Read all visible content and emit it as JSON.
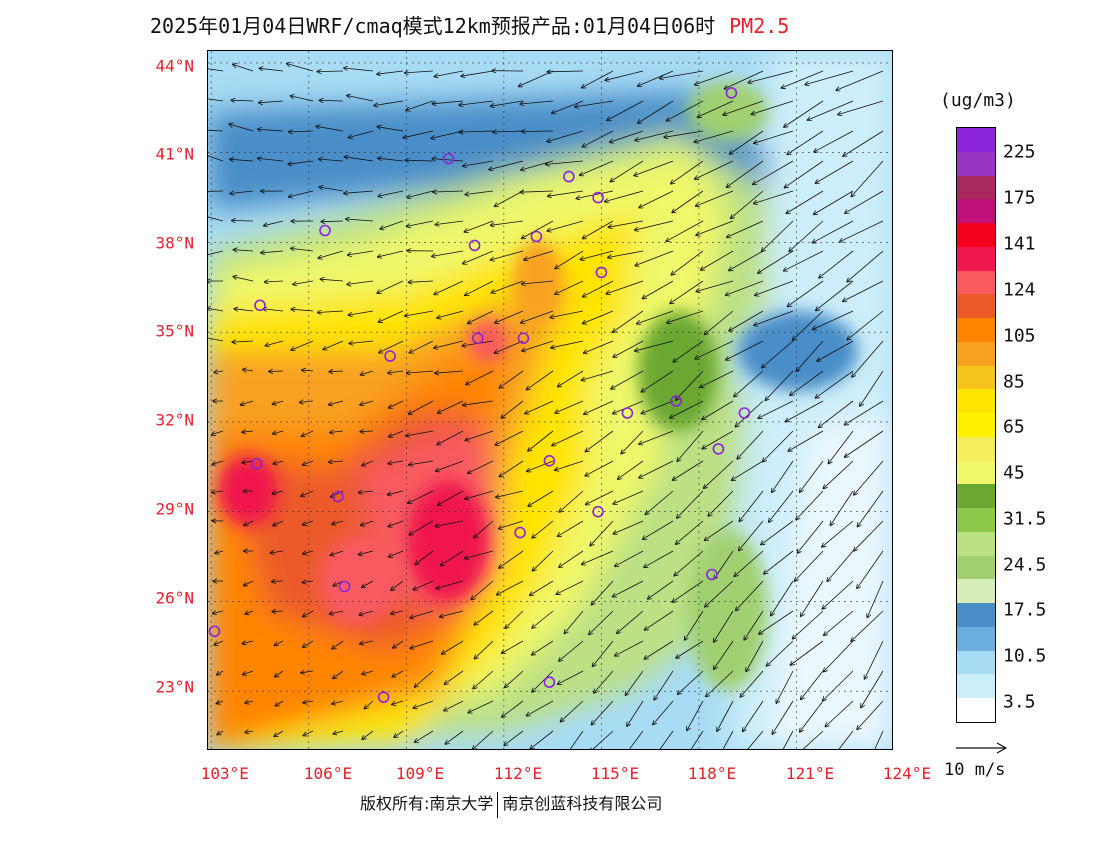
{
  "title": {
    "main": "2025年01月04日WRF/cmaq模式12km预报产品:01月04日06时",
    "species": "PM2.5"
  },
  "map": {
    "lat_labels": [
      "44°N",
      "41°N",
      "38°N",
      "35°N",
      "32°N",
      "29°N",
      "26°N",
      "23°N"
    ],
    "lat_values": [
      44,
      41,
      38,
      35,
      32,
      29,
      26,
      23
    ],
    "lon_labels": [
      "103°E",
      "106°E",
      "109°E",
      "112°E",
      "115°E",
      "118°E",
      "121°E",
      "124°E"
    ],
    "lon_values": [
      103,
      106,
      109,
      112,
      115,
      118,
      121,
      124
    ],
    "lon_range": [
      102.9,
      124
    ],
    "lat_range": [
      21,
      44.4
    ],
    "stations": [
      {
        "lon": 119,
        "lat": 43.0
      },
      {
        "lon": 110.3,
        "lat": 40.8
      },
      {
        "lon": 114.0,
        "lat": 40.2
      },
      {
        "lon": 114.9,
        "lat": 39.5
      },
      {
        "lon": 106.5,
        "lat": 38.4
      },
      {
        "lon": 111.1,
        "lat": 37.9
      },
      {
        "lon": 113.0,
        "lat": 38.2
      },
      {
        "lon": 115.0,
        "lat": 37.0
      },
      {
        "lon": 104.5,
        "lat": 35.9
      },
      {
        "lon": 108.5,
        "lat": 34.2
      },
      {
        "lon": 111.2,
        "lat": 34.8
      },
      {
        "lon": 112.6,
        "lat": 34.8
      },
      {
        "lon": 117.3,
        "lat": 32.7
      },
      {
        "lon": 115.8,
        "lat": 32.3
      },
      {
        "lon": 119.4,
        "lat": 32.3
      },
      {
        "lon": 118.6,
        "lat": 31.1
      },
      {
        "lon": 104.4,
        "lat": 30.6
      },
      {
        "lon": 113.4,
        "lat": 30.7
      },
      {
        "lon": 106.9,
        "lat": 29.5
      },
      {
        "lon": 114.9,
        "lat": 29.0
      },
      {
        "lon": 112.5,
        "lat": 28.3
      },
      {
        "lon": 107.1,
        "lat": 26.5
      },
      {
        "lon": 118.4,
        "lat": 26.9
      },
      {
        "lon": 103.1,
        "lat": 25.0
      },
      {
        "lon": 108.3,
        "lat": 22.8
      },
      {
        "lon": 113.4,
        "lat": 23.3
      }
    ]
  },
  "colorbar": {
    "unit": "(ug/m3)",
    "colors": [
      "#8c24d9",
      "#9a34c4",
      "#a82a5c",
      "#c0107a",
      "#f5001e",
      "#f0184e",
      "#f85a60",
      "#ec5a2a",
      "#ff8400",
      "#f8a020",
      "#f6c41e",
      "#ffe400",
      "#fff000",
      "#f4ee5c",
      "#eef86a",
      "#6aa832",
      "#8cc84a",
      "#bce084",
      "#a0d070",
      "#d8ecb8",
      "#4a8ec8",
      "#6aaee0",
      "#a8dcf4",
      "#cceefa",
      "#ffffff"
    ],
    "labels": [
      "225",
      "175",
      "141",
      "124",
      "105",
      "85",
      "65",
      "45",
      "31.5",
      "24.5",
      "17.5",
      "10.5",
      "3.5"
    ]
  },
  "wind_reference": "10 m/s",
  "copyright": {
    "left": "版权所有:南京大学",
    "right": "南京创蓝科技有限公司"
  }
}
